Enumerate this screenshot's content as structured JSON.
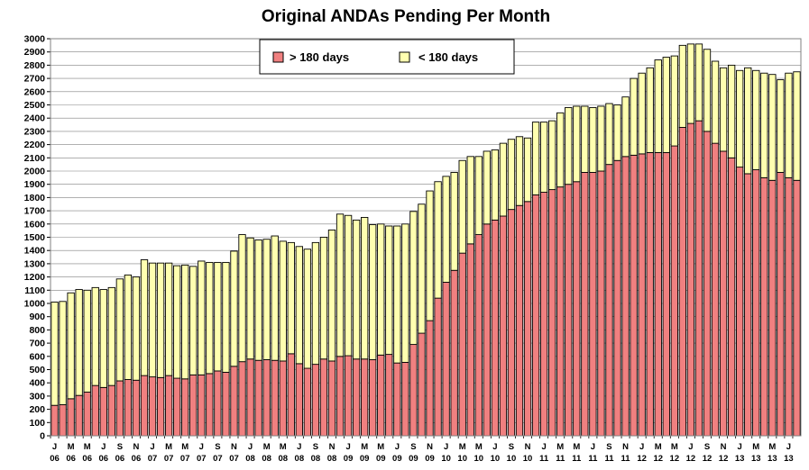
{
  "chart_data": {
    "type": "bar",
    "stacked": true,
    "title": "Original ANDAs Pending Per Month",
    "xlabel": "",
    "ylabel": "",
    "ylim": [
      0,
      3000
    ],
    "ytick_step": 100,
    "grid": true,
    "legend_position": "top-center",
    "categories": [
      [
        "J",
        "06"
      ],
      [
        "F",
        "06"
      ],
      [
        "M",
        "06"
      ],
      [
        "A",
        "06"
      ],
      [
        "M",
        "06"
      ],
      [
        "J",
        "06"
      ],
      [
        "J",
        "06"
      ],
      [
        "A",
        "06"
      ],
      [
        "S",
        "06"
      ],
      [
        "O",
        "06"
      ],
      [
        "N",
        "06"
      ],
      [
        "D",
        "06"
      ],
      [
        "J",
        "07"
      ],
      [
        "F",
        "07"
      ],
      [
        "M",
        "07"
      ],
      [
        "A",
        "07"
      ],
      [
        "M",
        "07"
      ],
      [
        "J",
        "07"
      ],
      [
        "J",
        "07"
      ],
      [
        "A",
        "07"
      ],
      [
        "S",
        "07"
      ],
      [
        "O",
        "07"
      ],
      [
        "N",
        "07"
      ],
      [
        "D",
        "07"
      ],
      [
        "J",
        "08"
      ],
      [
        "F",
        "08"
      ],
      [
        "M",
        "08"
      ],
      [
        "A",
        "08"
      ],
      [
        "M",
        "08"
      ],
      [
        "J",
        "08"
      ],
      [
        "J",
        "08"
      ],
      [
        "A",
        "08"
      ],
      [
        "S",
        "08"
      ],
      [
        "O",
        "08"
      ],
      [
        "N",
        "08"
      ],
      [
        "D",
        "08"
      ],
      [
        "J",
        "09"
      ],
      [
        "F",
        "09"
      ],
      [
        "M",
        "09"
      ],
      [
        "A",
        "09"
      ],
      [
        "M",
        "09"
      ],
      [
        "J",
        "09"
      ],
      [
        "J",
        "09"
      ],
      [
        "A",
        "09"
      ],
      [
        "S",
        "09"
      ],
      [
        "O",
        "09"
      ],
      [
        "N",
        "09"
      ],
      [
        "D",
        "09"
      ],
      [
        "J",
        "10"
      ],
      [
        "F",
        "10"
      ],
      [
        "M",
        "10"
      ],
      [
        "A",
        "10"
      ],
      [
        "M",
        "10"
      ],
      [
        "J",
        "10"
      ],
      [
        "J",
        "10"
      ],
      [
        "A",
        "10"
      ],
      [
        "S",
        "10"
      ],
      [
        "O",
        "10"
      ],
      [
        "N",
        "10"
      ],
      [
        "D",
        "10"
      ],
      [
        "J",
        "11"
      ],
      [
        "F",
        "11"
      ],
      [
        "M",
        "11"
      ],
      [
        "A",
        "11"
      ],
      [
        "M",
        "11"
      ],
      [
        "J",
        "11"
      ],
      [
        "J",
        "11"
      ],
      [
        "A",
        "11"
      ],
      [
        "S",
        "11"
      ],
      [
        "O",
        "11"
      ],
      [
        "N",
        "11"
      ],
      [
        "D",
        "11"
      ],
      [
        "J",
        "12"
      ],
      [
        "F",
        "12"
      ],
      [
        "M",
        "12"
      ],
      [
        "A",
        "12"
      ],
      [
        "M",
        "12"
      ],
      [
        "J",
        "12"
      ],
      [
        "J",
        "12"
      ],
      [
        "A",
        "12"
      ],
      [
        "S",
        "12"
      ],
      [
        "O",
        "12"
      ],
      [
        "N",
        "12"
      ],
      [
        "D",
        "12"
      ],
      [
        "J",
        "13"
      ],
      [
        "F",
        "13"
      ],
      [
        "M",
        "13"
      ],
      [
        "A",
        "13"
      ],
      [
        "M",
        "13"
      ],
      [
        "J",
        "13"
      ],
      [
        "J",
        "13"
      ],
      [
        "A",
        "13"
      ]
    ],
    "x_label_every": 2,
    "series": [
      {
        "name": "> 180 days",
        "color": "#f08080",
        "values": [
          230,
          235,
          280,
          305,
          330,
          380,
          365,
          380,
          415,
          425,
          420,
          455,
          445,
          440,
          455,
          435,
          430,
          460,
          460,
          470,
          490,
          480,
          525,
          560,
          580,
          570,
          575,
          570,
          565,
          620,
          545,
          510,
          540,
          580,
          565,
          600,
          605,
          580,
          580,
          575,
          610,
          615,
          550,
          555,
          690,
          775,
          870,
          1040,
          1160,
          1250,
          1380,
          1450,
          1520,
          1600,
          1630,
          1660,
          1710,
          1740,
          1770,
          1820,
          1840,
          1860,
          1880,
          1900,
          1920,
          1990,
          1990,
          2000,
          2050,
          2080,
          2110,
          2120,
          2130,
          2140,
          2140,
          2140,
          2190,
          2330,
          2360,
          2380,
          2300,
          2210,
          2150,
          2100,
          2030,
          1980,
          2010,
          1950,
          1930,
          1990,
          1950,
          1930
        ]
      },
      {
        "name": "< 180 days",
        "color": "#ffffb0",
        "values": [
          780,
          780,
          800,
          800,
          770,
          740,
          740,
          740,
          770,
          790,
          780,
          875,
          860,
          865,
          850,
          850,
          860,
          820,
          860,
          840,
          820,
          830,
          870,
          960,
          915,
          910,
          910,
          940,
          905,
          840,
          885,
          900,
          920,
          920,
          990,
          1075,
          1060,
          1050,
          1070,
          1020,
          990,
          970,
          1035,
          1045,
          1005,
          975,
          980,
          880,
          800,
          740,
          700,
          660,
          590,
          550,
          530,
          550,
          530,
          520,
          480,
          550,
          530,
          520,
          560,
          580,
          570,
          500,
          490,
          490,
          460,
          420,
          450,
          580,
          610,
          640,
          700,
          720,
          680,
          620,
          600,
          580,
          620,
          620,
          630,
          700,
          730,
          800,
          750,
          790,
          800,
          700,
          790,
          820
        ]
      }
    ]
  }
}
